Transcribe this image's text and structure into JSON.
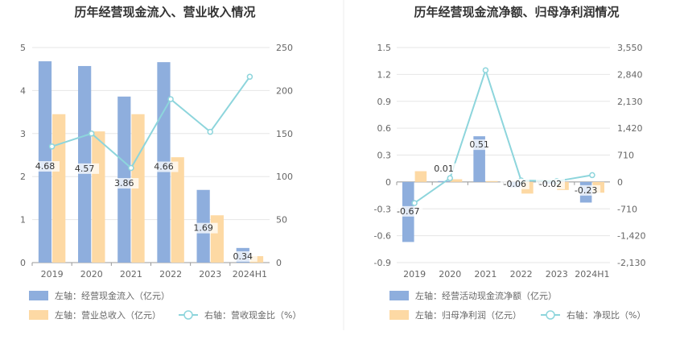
{
  "colors": {
    "bar_primary": "#8eaedd",
    "bar_secondary": "#fdd9a4",
    "line": "#8dd5dc",
    "grid": "#e6e6e6",
    "axis_text": "#666666",
    "title_text": "#333333",
    "divider": "#eeeeee"
  },
  "chart_data": [
    {
      "type": "bar",
      "title": "历年经营现金流入、营业收入情况",
      "categories": [
        "2019",
        "2020",
        "2021",
        "2022",
        "2023",
        "2024H1"
      ],
      "left_axis": {
        "ylim": [
          0,
          5
        ],
        "ticks": [
          "0",
          "1",
          "2",
          "3",
          "4",
          "5"
        ]
      },
      "right_axis": {
        "ylim": [
          0,
          250
        ],
        "ticks": [
          "0",
          "50",
          "100",
          "150",
          "200",
          "250"
        ]
      },
      "series": [
        {
          "name": "左轴：经营现金流入（亿元）",
          "type": "bar",
          "axis": "left",
          "color": "#8eaedd",
          "values": [
            4.68,
            4.57,
            3.86,
            4.66,
            1.69,
            0.34
          ],
          "labels": [
            "4.68",
            "4.57",
            "3.86",
            "4.66",
            "1.69",
            "0.34"
          ]
        },
        {
          "name": "左轴：营业总收入（亿元）",
          "type": "bar",
          "axis": "left",
          "color": "#fdd9a4",
          "values": [
            3.45,
            3.05,
            3.45,
            2.45,
            1.1,
            0.15
          ]
        },
        {
          "name": "右轴：营收现金比（%）",
          "type": "line",
          "axis": "right",
          "color": "#8dd5dc",
          "values": [
            135,
            150,
            110,
            190,
            152,
            216
          ]
        }
      ],
      "legend": [
        "左轴：经营现金流入（亿元）",
        "左轴：营业总收入（亿元）",
        "右轴：营收现金比（%）"
      ]
    },
    {
      "type": "bar",
      "title": "历年经营现金流净额、归母净利润情况",
      "categories": [
        "2019",
        "2020",
        "2021",
        "2022",
        "2023",
        "2024H1"
      ],
      "left_axis": {
        "ylim": [
          -0.9,
          1.5
        ],
        "ticks": [
          "-0.9",
          "-0.6",
          "-0.3",
          "0",
          "0.3",
          "0.6",
          "0.9",
          "1.2",
          "1.5"
        ]
      },
      "right_axis": {
        "ylim": [
          -2130,
          3550
        ],
        "ticks": [
          "-2,130",
          "-1,420",
          "-710",
          "0",
          "710",
          "1,420",
          "2,130",
          "2,840",
          "3,550"
        ]
      },
      "series": [
        {
          "name": "左轴：经营活动现金流净额（亿元）",
          "type": "bar",
          "axis": "left",
          "color": "#8eaedd",
          "values": [
            -0.67,
            0.01,
            0.51,
            -0.06,
            -0.02,
            -0.23
          ],
          "labels": [
            "-0.67",
            "0.01",
            "0.51",
            "-0.06",
            "-0.02",
            "-0.23"
          ]
        },
        {
          "name": "左轴：归母净利润（亿元）",
          "type": "bar",
          "axis": "left",
          "color": "#fdd9a4",
          "values": [
            0.12,
            0.03,
            0.01,
            -0.13,
            -0.09,
            -0.12
          ]
        },
        {
          "name": "右轴：净现比（%）",
          "type": "line",
          "axis": "right",
          "color": "#8dd5dc",
          "values": [
            -558,
            100,
            2950,
            40,
            20,
            180
          ]
        }
      ],
      "legend": [
        "左轴：经营活动现金流净额（亿元）",
        "左轴：归母净利润（亿元）",
        "右轴：净现比（%）"
      ]
    }
  ]
}
